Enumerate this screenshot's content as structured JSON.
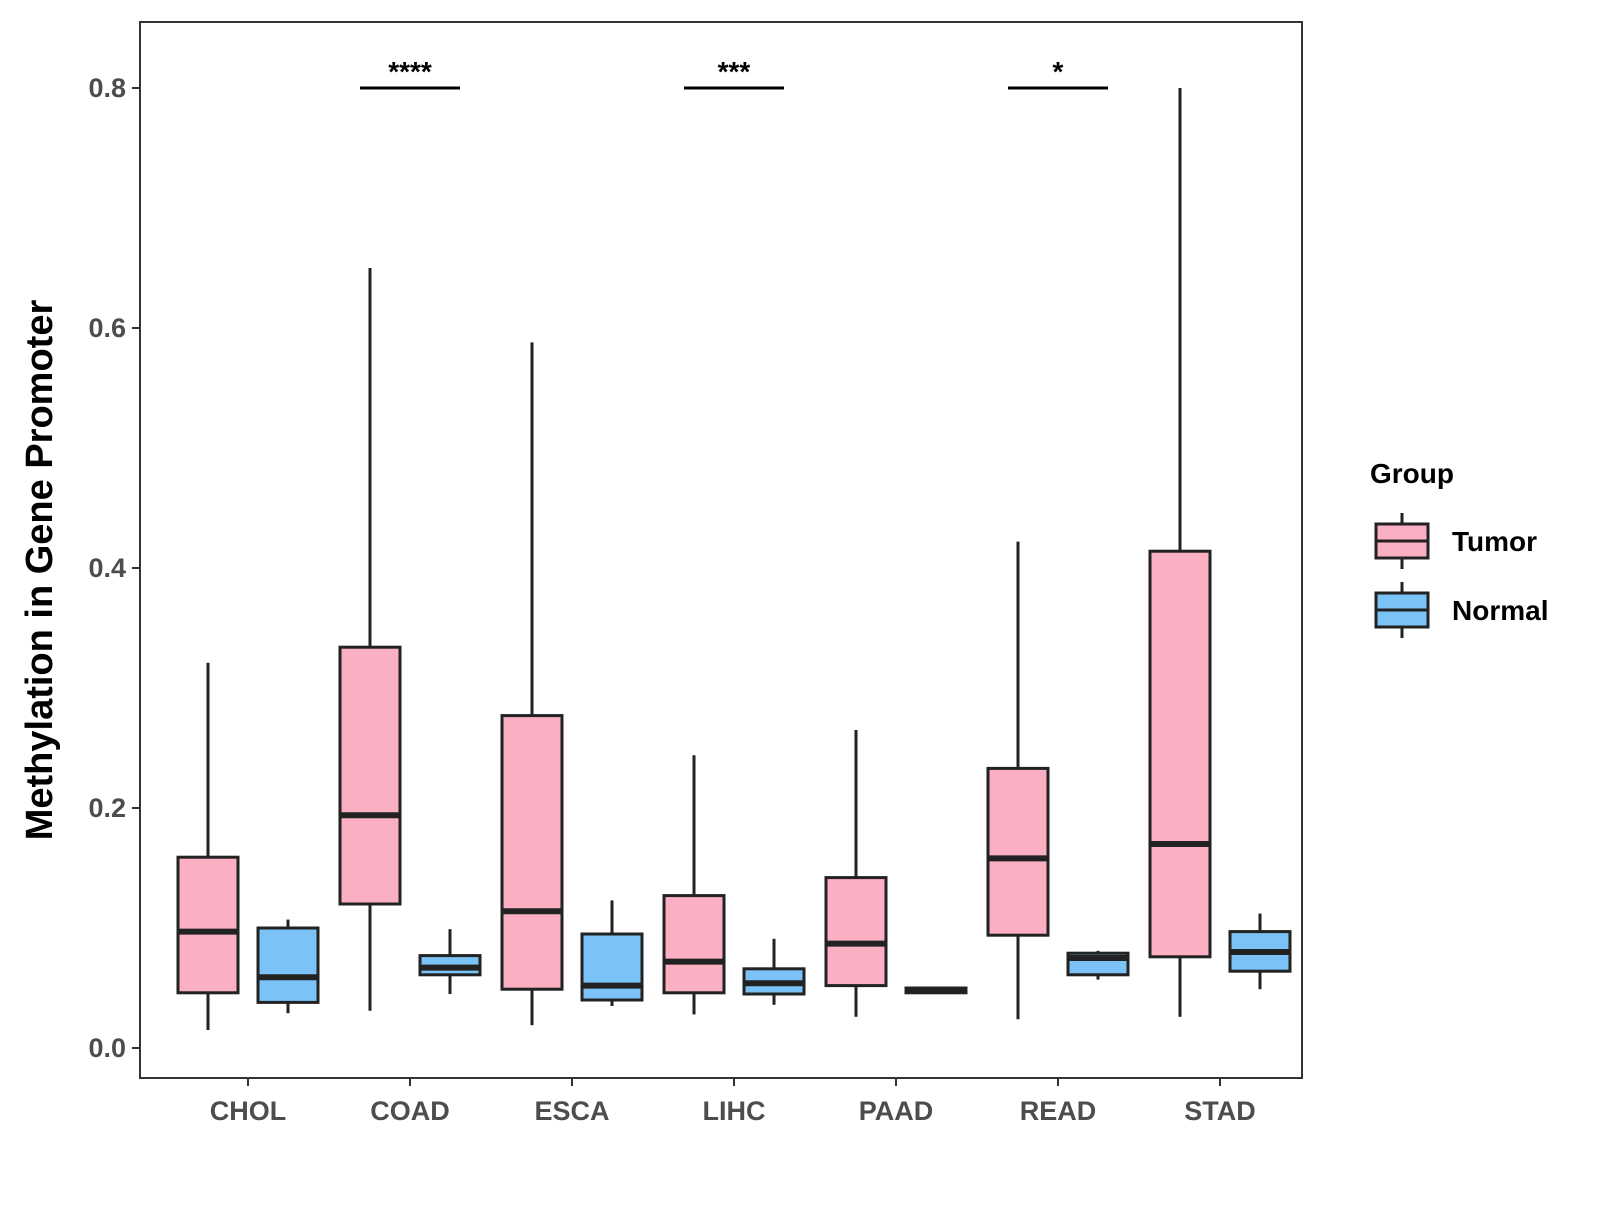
{
  "chart_data": {
    "type": "boxplot",
    "title": "",
    "xlabel": "",
    "ylabel": "Methylation in Gene Promoter",
    "ylim": [
      -0.025,
      0.855
    ],
    "yticks": [
      "0.0",
      "0.2",
      "0.4",
      "0.6",
      "0.8"
    ],
    "categories": [
      "CHOL",
      "COAD",
      "ESCA",
      "LIHC",
      "PAAD",
      "READ",
      "STAD"
    ],
    "legend": {
      "title": "Group",
      "position": "right",
      "items": [
        {
          "name": "Tumor",
          "color": "#FBAFC2"
        },
        {
          "name": "Normal",
          "color": "#7BC3F6"
        }
      ]
    },
    "series": [
      {
        "name": "Tumor",
        "color": "#FBAFC2",
        "boxes": [
          {
            "category": "CHOL",
            "min": 0.015,
            "q1": 0.046,
            "median": 0.097,
            "q3": 0.159,
            "max": 0.321
          },
          {
            "category": "COAD",
            "min": 0.031,
            "q1": 0.12,
            "median": 0.194,
            "q3": 0.334,
            "max": 0.65
          },
          {
            "category": "ESCA",
            "min": 0.019,
            "q1": 0.049,
            "median": 0.114,
            "q3": 0.277,
            "max": 0.588
          },
          {
            "category": "LIHC",
            "min": 0.028,
            "q1": 0.046,
            "median": 0.072,
            "q3": 0.127,
            "max": 0.244
          },
          {
            "category": "PAAD",
            "min": 0.026,
            "q1": 0.052,
            "median": 0.087,
            "q3": 0.142,
            "max": 0.265
          },
          {
            "category": "READ",
            "min": 0.024,
            "q1": 0.094,
            "median": 0.158,
            "q3": 0.233,
            "max": 0.422
          },
          {
            "category": "STAD",
            "min": 0.026,
            "q1": 0.076,
            "median": 0.17,
            "q3": 0.414,
            "max": 0.8
          }
        ]
      },
      {
        "name": "Normal",
        "color": "#7BC3F6",
        "boxes": [
          {
            "category": "CHOL",
            "min": 0.029,
            "q1": 0.038,
            "median": 0.059,
            "q3": 0.1,
            "max": 0.107
          },
          {
            "category": "COAD",
            "min": 0.045,
            "q1": 0.061,
            "median": 0.067,
            "q3": 0.077,
            "max": 0.099
          },
          {
            "category": "ESCA",
            "min": 0.035,
            "q1": 0.04,
            "median": 0.052,
            "q3": 0.095,
            "max": 0.123
          },
          {
            "category": "LIHC",
            "min": 0.036,
            "q1": 0.045,
            "median": 0.054,
            "q3": 0.066,
            "max": 0.091
          },
          {
            "category": "PAAD",
            "min": 0.045,
            "q1": 0.046,
            "median": 0.048,
            "q3": 0.05,
            "max": 0.051
          },
          {
            "category": "READ",
            "min": 0.057,
            "q1": 0.061,
            "median": 0.075,
            "q3": 0.079,
            "max": 0.081
          },
          {
            "category": "STAD",
            "min": 0.049,
            "q1": 0.064,
            "median": 0.08,
            "q3": 0.097,
            "max": 0.112
          }
        ]
      }
    ],
    "annotations": [
      {
        "category": "COAD",
        "label": "****",
        "y": 0.8
      },
      {
        "category": "LIHC",
        "label": "***",
        "y": 0.8
      },
      {
        "category": "READ",
        "label": "*",
        "y": 0.8
      }
    ]
  }
}
